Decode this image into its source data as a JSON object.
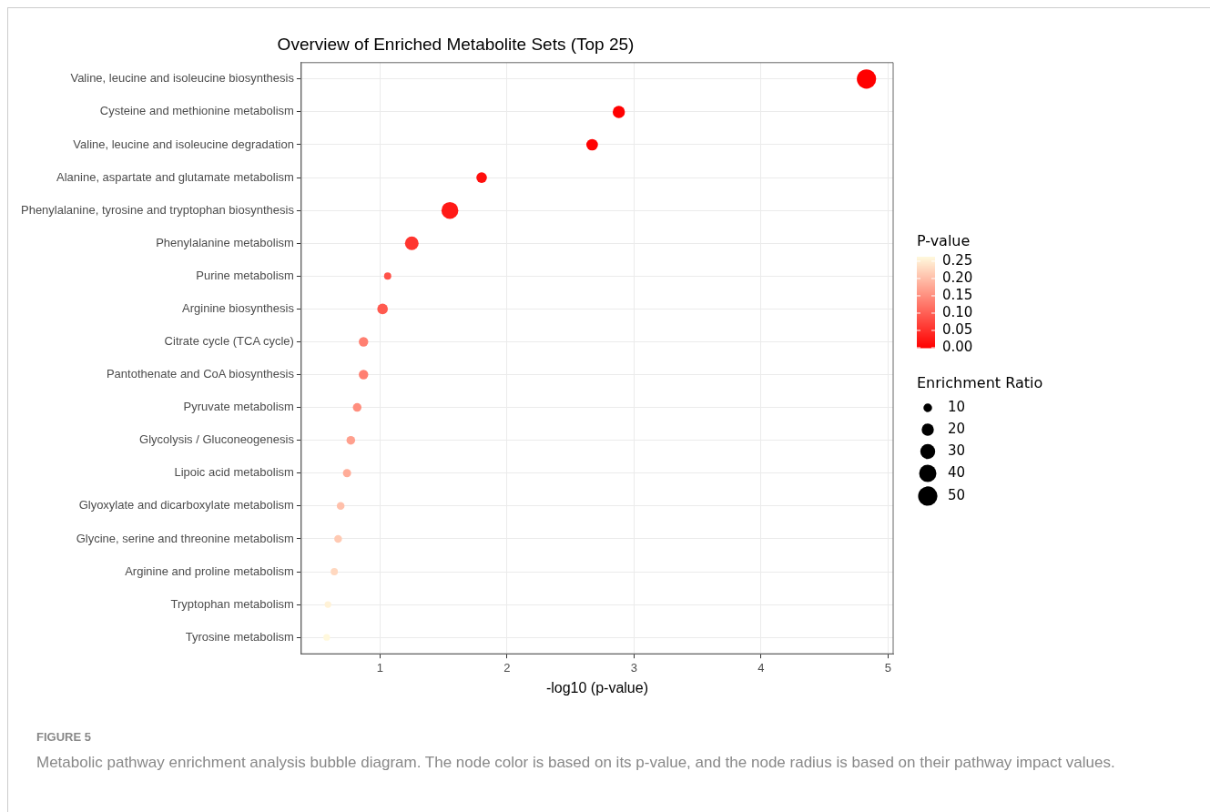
{
  "chart_data": {
    "type": "bubble",
    "orientation": "horizontal",
    "title": "Overview of Enriched Metabolite Sets (Top 25)",
    "xlabel": "-log10 (p-value)",
    "clabel": "P-value",
    "legend_title": "Enrichment Ratio",
    "grid": true,
    "categories": [
      "Valine, leucine and isoleucine biosynthesis",
      "Cysteine and methionine metabolism",
      "Valine, leucine and isoleucine degradation",
      "Alanine, aspartate and glutamate metabolism",
      "Phenylalanine, tyrosine and tryptophan biosynthesis",
      "Phenylalanine metabolism",
      "Purine metabolism",
      "Arginine biosynthesis",
      "Citrate cycle (TCA cycle)",
      "Pantothenate and CoA biosynthesis",
      "Pyruvate metabolism",
      "Glycolysis / Gluconeogenesis",
      "Lipoic acid metabolism",
      "Glyoxylate and dicarboxylate metabolism",
      "Glycine, serine and threonine metabolism",
      "Arginine and proline metabolism",
      "Tryptophan metabolism",
      "Tyrosine metabolism"
    ],
    "values": [
      4.83,
      2.88,
      2.67,
      1.8,
      1.55,
      1.25,
      1.06,
      1.02,
      0.87,
      0.87,
      0.82,
      0.77,
      0.74,
      0.69,
      0.67,
      0.64,
      0.59,
      0.58
    ],
    "sizes": [
      50,
      20,
      18,
      15,
      38,
      25,
      7,
      15,
      12,
      12,
      10,
      10,
      9,
      8,
      8,
      7,
      6,
      6
    ],
    "cvalues": [
      1e-05,
      0.0013,
      0.0021,
      0.016,
      0.028,
      0.056,
      0.087,
      0.095,
      0.135,
      0.135,
      0.151,
      0.17,
      0.182,
      0.204,
      0.214,
      0.229,
      0.257,
      0.263
    ],
    "size_legend": [
      10,
      20,
      30,
      40,
      50
    ],
    "clim": [
      0,
      0.263
    ],
    "cticks": [
      {
        "value": 0,
        "label": "0.00"
      },
      {
        "value": 0.05,
        "label": "0.05"
      },
      {
        "value": 0.1,
        "label": "0.10"
      },
      {
        "value": 0.15,
        "label": "0.15"
      },
      {
        "value": 0.2,
        "label": "0.20"
      },
      {
        "value": 0.25,
        "label": "0.25"
      }
    ],
    "xlim": [
      0.38,
      5.04
    ],
    "xticks": [
      1,
      2,
      3,
      4,
      5
    ],
    "annotations": [
      "FIGURE 5",
      "Metabolic pathway enrichment analysis bubble diagram. The node color is based on its p-value, and the node radius is based on their pathway impact values."
    ]
  }
}
